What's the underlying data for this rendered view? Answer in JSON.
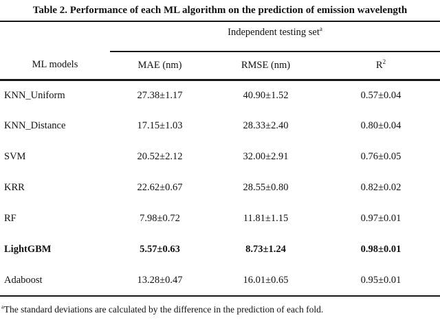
{
  "title": "Table 2. Performance of each ML algorithm on the prediction of emission wavelength",
  "colors": {
    "background": "#ffffff",
    "text": "#111111",
    "rule": "#161616"
  },
  "table": {
    "span_header": {
      "label": "Independent testing set",
      "sup": "a"
    },
    "columns": {
      "model": "ML models",
      "mae": "MAE (nm)",
      "rmse": "RMSE (nm)",
      "r2_base": "R",
      "r2_sup": "2"
    },
    "rows": [
      {
        "model": "KNN_Uniform",
        "mae": "27.38±1.17",
        "rmse": "40.90±1.52",
        "r2": "0.57±0.04",
        "bold": false
      },
      {
        "model": "KNN_Distance",
        "mae": "17.15±1.03",
        "rmse": "28.33±2.40",
        "r2": "0.80±0.04",
        "bold": false
      },
      {
        "model": "SVM",
        "mae": "20.52±2.12",
        "rmse": "32.00±2.91",
        "r2": "0.76±0.05",
        "bold": false
      },
      {
        "model": "KRR",
        "mae": "22.62±0.67",
        "rmse": "28.55±0.80",
        "r2": "0.82±0.02",
        "bold": false
      },
      {
        "model": "RF",
        "mae": "7.98±0.72",
        "rmse": "11.81±1.15",
        "r2": "0.97±0.01",
        "bold": false
      },
      {
        "model": "LightGBM",
        "mae": "5.57±0.63",
        "rmse": "8.73±1.24",
        "r2": "0.98±0.01",
        "bold": true
      },
      {
        "model": "Adaboost",
        "mae": "13.28±0.47",
        "rmse": "16.01±0.65",
        "r2": "0.95±0.01",
        "bold": false
      }
    ]
  },
  "footnote": {
    "sup": "a",
    "text": "The standard deviations are calculated by the difference in the prediction of each fold."
  }
}
